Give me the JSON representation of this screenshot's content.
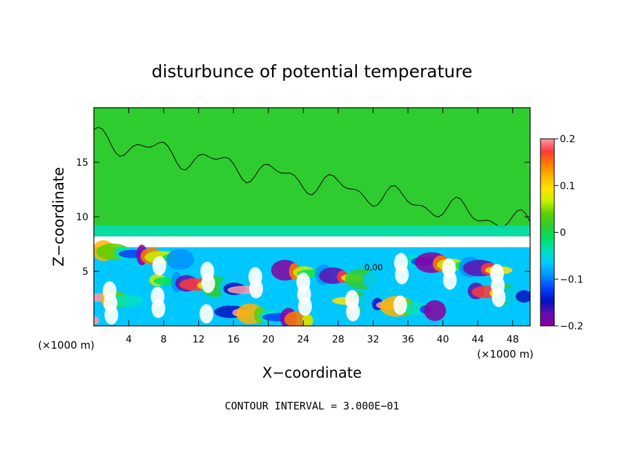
{
  "chart_data": {
    "type": "heatmap",
    "title": "disturbunce of potential temperature",
    "xlabel": "X−coordinate",
    "ylabel": "Z−coordinate",
    "x_unit": "(×1000 m)",
    "y_unit": "(×1000 m)",
    "xlim": [
      0,
      50
    ],
    "ylim": [
      0,
      20
    ],
    "x_ticks": [
      4,
      8,
      12,
      16,
      20,
      24,
      28,
      32,
      36,
      40,
      44,
      48
    ],
    "x_tick_labels": [
      "4",
      "8",
      "12",
      "16",
      "20",
      "24",
      "28",
      "32",
      "36",
      "40",
      "44",
      "48"
    ],
    "y_ticks": [
      5,
      10,
      15
    ],
    "y_tick_labels": [
      "5",
      "10",
      "15"
    ],
    "colorbar": {
      "range": [
        -0.2,
        0.2
      ],
      "ticks": [
        0.2,
        0.1,
        0,
        -0.1,
        -0.2
      ],
      "tick_labels": [
        "0.2",
        "0.1",
        "0",
        "−0.1",
        "−0.2"
      ],
      "colors": [
        "#ff9aa8",
        "#ff3a3a",
        "#ff7a00",
        "#ffb400",
        "#ffe200",
        "#c8f000",
        "#5ad000",
        "#2ecc2e",
        "#00e060",
        "#00e0c0",
        "#00c8ff",
        "#0090ff",
        "#0040ff",
        "#0010c0",
        "#6010b0",
        "#8a00a0"
      ]
    },
    "background_value": 0,
    "contour_labels": [
      "0.00"
    ],
    "note": "CONTOUR INTERVAL = 3.000E−01"
  },
  "colors": {
    "upper_field": "#2ecc2e",
    "layer_band": "#00e0c0",
    "warm": "#ff3a3a",
    "cold": "#0040ff"
  }
}
